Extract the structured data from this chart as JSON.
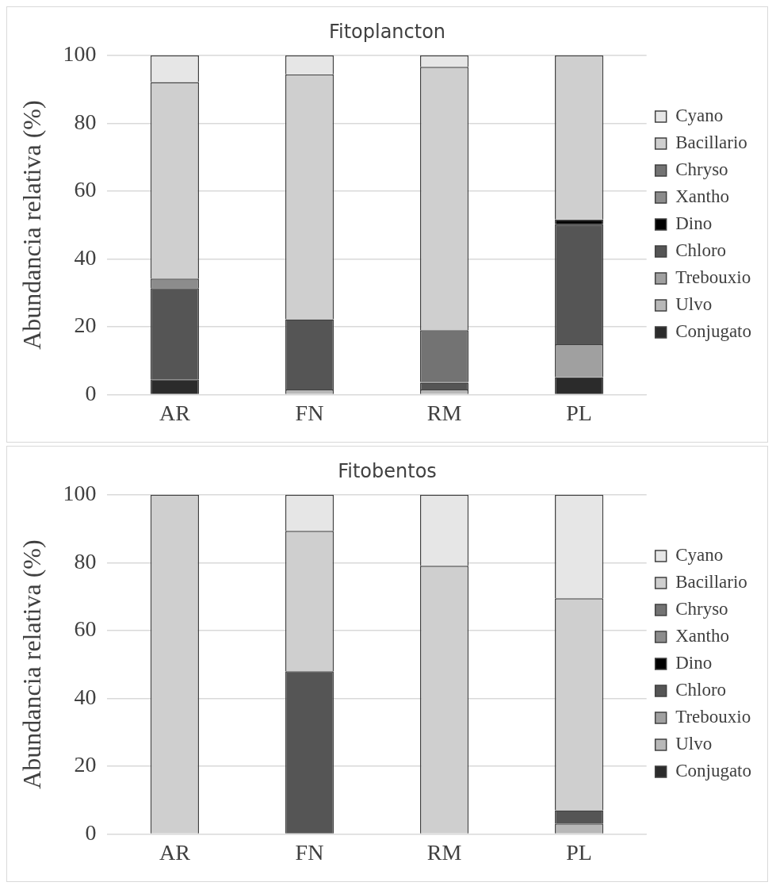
{
  "chart_data": [
    {
      "type": "bar",
      "title": "Fitoplancton",
      "ylabel": "Abundancia relativa (%)",
      "categories": [
        "AR",
        "FN",
        "RM",
        "PL"
      ],
      "stacked": true,
      "ylim": [
        0,
        100
      ],
      "yticks": [
        0,
        20,
        40,
        60,
        80,
        100
      ],
      "grid": "y",
      "legend": "right",
      "series": [
        {
          "name": "Conjugato",
          "color": "#2b2b2b",
          "values": [
            4.5,
            0,
            0,
            5.1
          ]
        },
        {
          "name": "Ulvo",
          "color": "#b8b8b8",
          "values": [
            0,
            1.5,
            1.5,
            0
          ]
        },
        {
          "name": "Trebouxio",
          "color": "#a0a0a0",
          "values": [
            0,
            0,
            0,
            9.7
          ]
        },
        {
          "name": "Chloro",
          "color": "#555555",
          "values": [
            26.9,
            20.7,
            2.0,
            35.4
          ]
        },
        {
          "name": "Dino",
          "color": "#000000",
          "values": [
            0,
            0,
            0.3,
            1.4
          ]
        },
        {
          "name": "Xantho",
          "color": "#8c8c8c",
          "values": [
            2.8,
            0,
            0,
            0
          ]
        },
        {
          "name": "Chryso",
          "color": "#737373",
          "values": [
            0,
            0,
            15.2,
            0
          ]
        },
        {
          "name": "Bacillario",
          "color": "#cfcfcf",
          "values": [
            57.9,
            72.2,
            77.6,
            48.4
          ]
        },
        {
          "name": "Cyano",
          "color": "#e6e6e6",
          "values": [
            7.9,
            5.6,
            3.4,
            0
          ]
        }
      ]
    },
    {
      "type": "bar",
      "title": "Fitobentos",
      "ylabel": "Abundancia relativa (%)",
      "categories": [
        "AR",
        "FN",
        "RM",
        "PL"
      ],
      "stacked": true,
      "ylim": [
        0,
        100
      ],
      "yticks": [
        0,
        20,
        40,
        60,
        80,
        100
      ],
      "grid": "y",
      "legend": "right",
      "series": [
        {
          "name": "Conjugato",
          "color": "#2b2b2b",
          "values": [
            0,
            0,
            0,
            0
          ]
        },
        {
          "name": "Ulvo",
          "color": "#b8b8b8",
          "values": [
            0,
            0,
            0,
            3.1
          ]
        },
        {
          "name": "Trebouxio",
          "color": "#a0a0a0",
          "values": [
            0,
            0,
            0,
            0
          ]
        },
        {
          "name": "Chloro",
          "color": "#555555",
          "values": [
            0,
            48.0,
            0,
            3.9
          ]
        },
        {
          "name": "Dino",
          "color": "#000000",
          "values": [
            0,
            0,
            0,
            0
          ]
        },
        {
          "name": "Xantho",
          "color": "#8c8c8c",
          "values": [
            0,
            0,
            0,
            0
          ]
        },
        {
          "name": "Chryso",
          "color": "#737373",
          "values": [
            0,
            0,
            0,
            0
          ]
        },
        {
          "name": "Bacillario",
          "color": "#cfcfcf",
          "values": [
            100,
            41.4,
            79.1,
            62.5
          ]
        },
        {
          "name": "Cyano",
          "color": "#e6e6e6",
          "values": [
            0,
            10.6,
            20.9,
            30.5
          ]
        }
      ]
    }
  ]
}
